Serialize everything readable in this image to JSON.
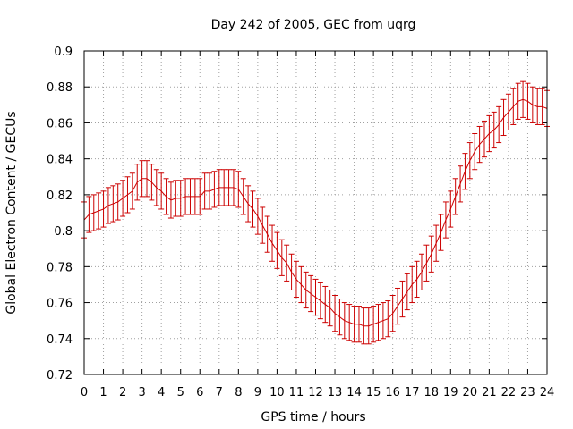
{
  "chart_data": {
    "type": "line",
    "title": "Day 242 of 2005, GEC from uqrg",
    "xlabel": "GPS time / hours",
    "ylabel": "Global Electron Content / GECUs",
    "xlim": [
      0,
      24
    ],
    "ylim": [
      0.72,
      0.9
    ],
    "grid": true,
    "x_ticks": [
      "0",
      "1",
      "2",
      "3",
      "4",
      "5",
      "6",
      "7",
      "8",
      "9",
      "10",
      "11",
      "12",
      "13",
      "14",
      "15",
      "16",
      "17",
      "18",
      "19",
      "20",
      "21",
      "22",
      "23",
      "24"
    ],
    "y_ticks": [
      "0.72",
      "0.74",
      "0.76",
      "0.78",
      "0.8",
      "0.82",
      "0.84",
      "0.86",
      "0.88",
      "0.9"
    ],
    "series_color": "#cc0000",
    "series": [
      {
        "x": [
          0,
          0.25,
          0.5,
          0.75,
          1,
          1.25,
          1.5,
          1.75,
          2,
          2.25,
          2.5,
          2.75,
          3,
          3.25,
          3.5,
          3.75,
          4,
          4.25,
          4.5,
          4.75,
          5,
          5.25,
          5.5,
          5.75,
          6,
          6.25,
          6.5,
          6.75,
          7,
          7.25,
          7.5,
          7.75,
          8,
          8.25,
          8.5,
          8.75,
          9,
          9.25,
          9.5,
          9.75,
          10,
          10.25,
          10.5,
          10.75,
          11,
          11.25,
          11.5,
          11.75,
          12,
          12.25,
          12.5,
          12.75,
          13,
          13.25,
          13.5,
          13.75,
          14,
          14.25,
          14.5,
          14.75,
          15,
          15.25,
          15.5,
          15.75,
          16,
          16.25,
          16.5,
          16.75,
          17,
          17.25,
          17.5,
          17.75,
          18,
          18.25,
          18.5,
          18.75,
          19,
          19.25,
          19.5,
          19.75,
          20,
          20.25,
          20.5,
          20.75,
          21,
          21.25,
          21.5,
          21.75,
          22,
          22.25,
          22.5,
          22.75,
          23,
          23.25,
          23.5,
          23.75,
          24
        ],
        "y": [
          0.806,
          0.809,
          0.81,
          0.811,
          0.812,
          0.814,
          0.815,
          0.816,
          0.818,
          0.82,
          0.822,
          0.827,
          0.829,
          0.829,
          0.827,
          0.824,
          0.822,
          0.819,
          0.817,
          0.818,
          0.818,
          0.819,
          0.819,
          0.819,
          0.819,
          0.822,
          0.822,
          0.823,
          0.824,
          0.824,
          0.824,
          0.824,
          0.823,
          0.819,
          0.815,
          0.812,
          0.808,
          0.803,
          0.798,
          0.793,
          0.789,
          0.785,
          0.782,
          0.777,
          0.773,
          0.77,
          0.767,
          0.765,
          0.763,
          0.761,
          0.759,
          0.757,
          0.754,
          0.752,
          0.75,
          0.749,
          0.748,
          0.748,
          0.747,
          0.747,
          0.748,
          0.749,
          0.75,
          0.751,
          0.754,
          0.758,
          0.762,
          0.766,
          0.77,
          0.773,
          0.777,
          0.782,
          0.787,
          0.793,
          0.799,
          0.806,
          0.812,
          0.819,
          0.826,
          0.833,
          0.839,
          0.844,
          0.848,
          0.851,
          0.854,
          0.856,
          0.859,
          0.863,
          0.866,
          0.869,
          0.872,
          0.873,
          0.872,
          0.87,
          0.869,
          0.869,
          0.868
        ],
        "err": 0.01
      }
    ]
  }
}
